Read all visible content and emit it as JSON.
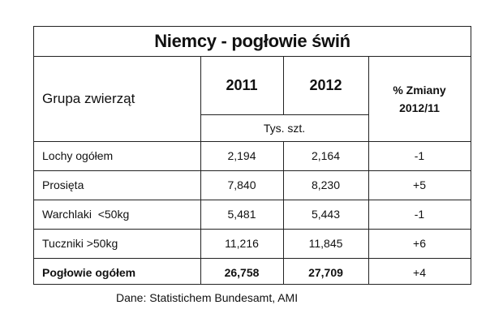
{
  "table": {
    "title": "Niemcy - pogłowie świń",
    "header": {
      "group_label": "Grupa zwierząt",
      "year1": "2011",
      "year2": "2012",
      "change_line1": "% Zmiany",
      "change_line2": "2012/11",
      "unit": "Tys. szt."
    },
    "rows": [
      {
        "label": "Lochy ogółem",
        "v2011": "2,194",
        "v2012": "2,164",
        "change": "-1"
      },
      {
        "label": "Prosięta",
        "v2011": "7,840",
        "v2012": "8,230",
        "change": "+5"
      },
      {
        "label": "Warchlaki  <50kg",
        "v2011": "5,481",
        "v2012": "5,443",
        "change": "-1"
      },
      {
        "label": "Tuczniki >50kg",
        "v2011": "11,216",
        "v2012": "11,845",
        "change": "+6"
      },
      {
        "label": "Pogłowie ogółem",
        "v2011": "26,758",
        "v2012": "27,709",
        "change": "+4"
      }
    ]
  },
  "source": "Dane: Statistichem Bundesamt, AMI"
}
